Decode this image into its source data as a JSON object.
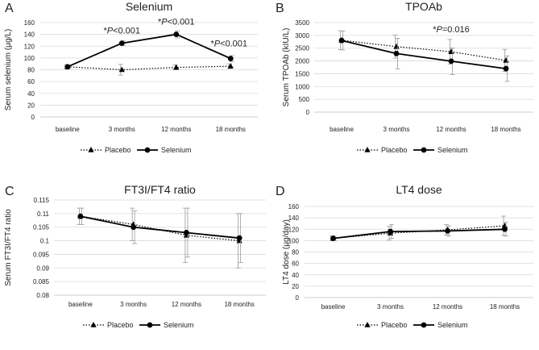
{
  "chart_data": [
    {
      "type": "line",
      "panel_label": "A",
      "title": "Selenium",
      "ylabel": "Serum selenium (μg/L)",
      "xlabel": "",
      "categories": [
        "baseline",
        "3 months",
        "12 months",
        "18 months"
      ],
      "ylim": [
        0,
        160
      ],
      "yticks": [
        0,
        20,
        40,
        60,
        80,
        100,
        120,
        140,
        160
      ],
      "tick_labels": [
        "0",
        "20",
        "40",
        "60",
        "80",
        "100",
        "120",
        "140",
        "160"
      ],
      "grid": true,
      "series": [
        {
          "name": "Placebo",
          "marker": "triangle",
          "style": "dotted",
          "values": [
            85,
            80,
            84,
            86
          ],
          "errors": [
            3,
            9,
            4,
            4
          ]
        },
        {
          "name": "Selenium",
          "marker": "circle",
          "style": "solid",
          "values": [
            85,
            125,
            140,
            99
          ],
          "errors": [
            3,
            4,
            6,
            5
          ]
        }
      ],
      "annotations": [
        {
          "category": "3 months",
          "y": 125,
          "star": "*",
          "italic": "P",
          "rest": "<0.001"
        },
        {
          "category": "12 months",
          "y": 140,
          "star": "*",
          "italic": "P",
          "rest": "<0.001"
        },
        {
          "category": "18 months",
          "y": 99,
          "star": "*",
          "italic": "P",
          "rest": "<0.001"
        }
      ],
      "legend": [
        "Placebo",
        "Selenium"
      ]
    },
    {
      "type": "line",
      "panel_label": "B",
      "title": "TPOAb",
      "ylabel": "Serum TPOAb  (kIU/L)",
      "xlabel": "",
      "categories": [
        "baseline",
        "3 months",
        "12 months",
        "18 months"
      ],
      "ylim": [
        0,
        3500
      ],
      "yticks": [
        0,
        500,
        1000,
        1500,
        2000,
        2500,
        3000,
        3500
      ],
      "tick_labels": [
        "0",
        "500",
        "1000",
        "1500",
        "2000",
        "2500",
        "3000",
        "3500"
      ],
      "grid": true,
      "series": [
        {
          "name": "Placebo",
          "marker": "triangle",
          "style": "dotted",
          "values": [
            2810,
            2560,
            2360,
            2020
          ],
          "errors": [
            370,
            450,
            480,
            430
          ]
        },
        {
          "name": "Selenium",
          "marker": "circle",
          "style": "solid",
          "values": [
            2800,
            2290,
            1990,
            1700
          ],
          "errors": [
            370,
            600,
            520,
            500
          ]
        }
      ],
      "annotations": [
        {
          "category": "12 months",
          "y": 2360,
          "star": "*",
          "italic": "P",
          "rest": "=0.016"
        }
      ],
      "legend": [
        "Placebo",
        "Selenium"
      ]
    },
    {
      "type": "line",
      "panel_label": "C",
      "title": "FT3I/FT4 ratio",
      "ylabel": "Serum FT3I/FT4 ratio",
      "xlabel": "",
      "categories": [
        "baseline",
        "3 months",
        "12 months",
        "18 months"
      ],
      "ylim": [
        0.08,
        0.115
      ],
      "yticks": [
        0.08,
        0.085,
        0.09,
        0.095,
        0.1,
        0.105,
        0.11,
        0.115
      ],
      "tick_labels": [
        "0.08",
        "0.085",
        "0.09",
        "0.095",
        "0.1",
        "0.105",
        "0.11",
        "0.115"
      ],
      "grid": true,
      "series": [
        {
          "name": "Placebo",
          "marker": "triangle",
          "style": "dotted",
          "values": [
            0.109,
            0.106,
            0.102,
            0.1
          ],
          "errors": [
            0.003,
            0.006,
            0.01,
            0.01
          ]
        },
        {
          "name": "Selenium",
          "marker": "circle",
          "style": "solid",
          "values": [
            0.109,
            0.105,
            0.103,
            0.101
          ],
          "errors": [
            0.003,
            0.006,
            0.009,
            0.009
          ]
        }
      ],
      "annotations": [],
      "legend": [
        "Placebo",
        "Selenium"
      ]
    },
    {
      "type": "line",
      "panel_label": "D",
      "title": "LT4 dose",
      "ylabel": "LT4 dose (μg/day)",
      "xlabel": "",
      "categories": [
        "baseline",
        "3 months",
        "12 months",
        "18 months"
      ],
      "ylim": [
        0,
        160
      ],
      "yticks": [
        0,
        20,
        40,
        60,
        80,
        100,
        120,
        140,
        160
      ],
      "tick_labels": [
        "0",
        "20",
        "40",
        "60",
        "80",
        "100",
        "120",
        "140",
        "160"
      ],
      "grid": true,
      "series": [
        {
          "name": "Placebo",
          "marker": "triangle",
          "style": "dotted",
          "values": [
            104,
            113,
            119,
            126
          ],
          "errors": [
            4,
            12,
            9,
            17
          ]
        },
        {
          "name": "Selenium",
          "marker": "circle",
          "style": "solid",
          "values": [
            104,
            116,
            117,
            120
          ],
          "errors": [
            4,
            12,
            9,
            12
          ]
        }
      ],
      "annotations": [],
      "legend": [
        "Placebo",
        "Selenium"
      ]
    }
  ]
}
